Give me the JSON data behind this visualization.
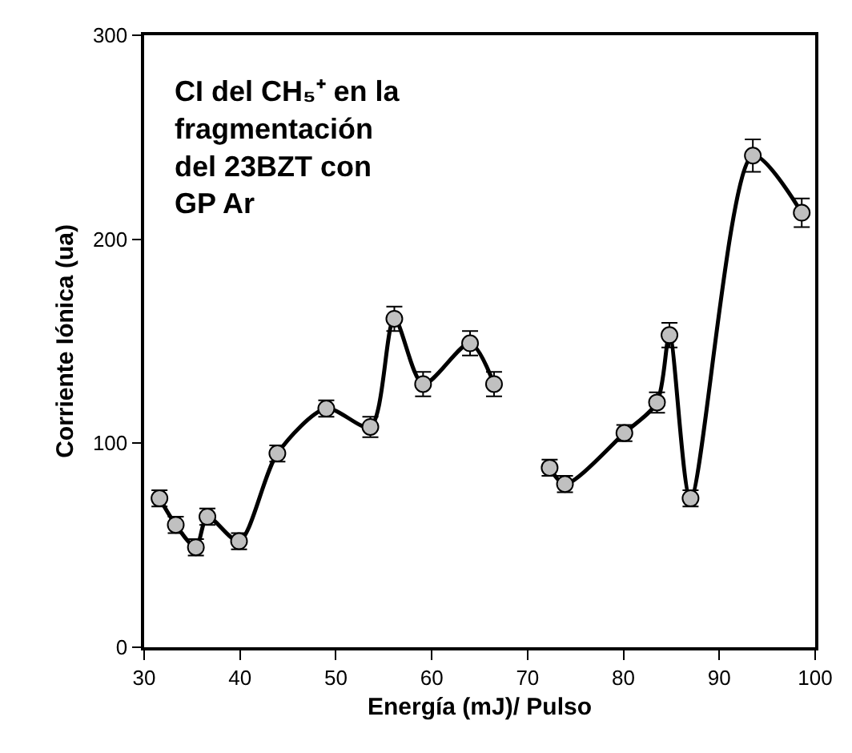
{
  "chart_data": {
    "type": "line",
    "title": "CI del CH₅⁺ en la\nfragmentación\ndel 23BZT con\nGP Ar",
    "xlabel": "Energía (mJ)/ Pulso",
    "ylabel": "Corriente Iónica (ua)",
    "x": [
      31.6,
      33.3,
      35.4,
      36.6,
      39.9,
      43.9,
      49,
      53.6,
      56.1,
      59.1,
      64,
      66.5,
      69,
      72.3,
      73.9,
      80.1,
      83.5,
      84.8,
      87,
      93.5,
      98.6
    ],
    "series": [
      {
        "color": "#000000",
        "values": [
          73,
          60,
          49,
          64,
          52,
          95,
          117,
          108,
          161,
          129,
          149,
          129,
          null,
          88,
          80,
          105,
          120,
          153,
          73,
          241,
          213
        ],
        "errors": [
          4,
          4,
          4,
          4,
          4,
          4,
          4,
          5,
          6,
          6,
          6,
          6,
          null,
          4,
          4,
          4,
          5,
          6,
          4,
          8,
          7
        ]
      }
    ],
    "xlim": [
      30,
      100
    ],
    "xticks": [
      30,
      40,
      50,
      60,
      70,
      80,
      90,
      100
    ],
    "ylim": [
      0,
      300
    ],
    "yticks": [
      0,
      100,
      200,
      300
    ],
    "marker": "circle",
    "line_style": "solid"
  }
}
